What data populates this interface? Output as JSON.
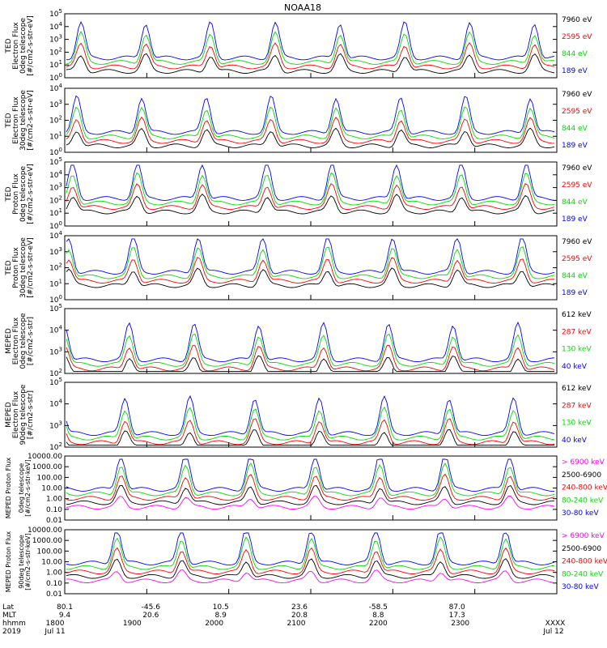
{
  "title": "NOAA18",
  "colors": {
    "blue": "#0000ff",
    "red": "#ff0000",
    "green": "#00dd00",
    "black": "#000000",
    "magenta": "#ff00ff"
  },
  "panels": [
    {
      "instrument": "TED",
      "quantity": "Electron Flux",
      "telescope": "0deg telescope",
      "units": "[#/cm2-s-str-eV]",
      "tick_labels": [
        "10^0",
        "10^1",
        "10^2",
        "10^3",
        "10^4",
        "10^5"
      ],
      "legend": [
        {
          "label": "7960 eV",
          "color": "black"
        },
        {
          "label": "2595 eV",
          "color": "red"
        },
        {
          "label": "844 eV",
          "color": "green"
        },
        {
          "label": "189 eV",
          "color": "blue"
        }
      ]
    },
    {
      "instrument": "TED",
      "quantity": "Electron Flux",
      "telescope": "30deg telescope",
      "units": "[#/cm2-s-str-eV]",
      "tick_labels": [
        "10^0",
        "10^1",
        "10^2",
        "10^3",
        "10^4"
      ],
      "legend": [
        {
          "label": "7960 eV",
          "color": "black"
        },
        {
          "label": "2595 eV",
          "color": "red"
        },
        {
          "label": "844 eV",
          "color": "green"
        },
        {
          "label": "189 eV",
          "color": "blue"
        }
      ]
    },
    {
      "instrument": "TED",
      "quantity": "Proton Flux",
      "telescope": "0deg telescope",
      "units": "[#/cm2-s-str-eV]",
      "tick_labels": [
        "10^0",
        "10^1",
        "10^2",
        "10^3",
        "10^4",
        "10^5"
      ],
      "legend": [
        {
          "label": "7960 eV",
          "color": "black"
        },
        {
          "label": "2595 eV",
          "color": "red"
        },
        {
          "label": "844 eV",
          "color": "green"
        },
        {
          "label": "189 eV",
          "color": "blue"
        }
      ]
    },
    {
      "instrument": "TED",
      "quantity": "Proton Flux",
      "telescope": "30deg telescope",
      "units": "[#/cm2-s-str-eV]",
      "tick_labels": [
        "10^0",
        "10^1",
        "10^2",
        "10^3",
        "10^4"
      ],
      "legend": [
        {
          "label": "7960 eV",
          "color": "black"
        },
        {
          "label": "2595 eV",
          "color": "red"
        },
        {
          "label": "844 eV",
          "color": "green"
        },
        {
          "label": "189 eV",
          "color": "blue"
        }
      ]
    },
    {
      "instrument": "MEPED",
      "quantity": "Electron Flux",
      "telescope": "0deg telescope",
      "units": "[#/cm2-s-str]",
      "tick_labels": [
        "10^2",
        "10^3",
        "10^4",
        "10^5"
      ],
      "legend": [
        {
          "label": "612 keV",
          "color": "black"
        },
        {
          "label": "287 keV",
          "color": "red"
        },
        {
          "label": "130 keV",
          "color": "green"
        },
        {
          "label": "40 keV",
          "color": "blue"
        }
      ]
    },
    {
      "instrument": "MEPED",
      "quantity": "Electron Flux",
      "telescope": "90deg telescope",
      "units": "[#/cm2-s-str]",
      "tick_labels": [
        "10^2",
        "10^3",
        "10^4",
        "10^5"
      ],
      "legend": [
        {
          "label": "612 keV",
          "color": "black"
        },
        {
          "label": "287 keV",
          "color": "red"
        },
        {
          "label": "130 keV",
          "color": "green"
        },
        {
          "label": "40 keV",
          "color": "blue"
        }
      ]
    },
    {
      "instrument": "MEPED",
      "quantity": "Proton Flux",
      "telescope": "0deg telescope",
      "units": "[#/cm2-s-str-keV]",
      "tick_labels": [
        "0.01",
        "0.10",
        "1.00",
        "10.00",
        "100.00",
        "1000.00",
        "10000.00"
      ],
      "legend": [
        {
          "label": "> 6900 keV",
          "color": "magenta"
        },
        {
          "label": "2500-6900",
          "color": "black"
        },
        {
          "label": "240-800 keV",
          "color": "red"
        },
        {
          "label": "80-240 keV",
          "color": "green"
        },
        {
          "label": "30-80 keV",
          "color": "blue"
        }
      ]
    },
    {
      "instrument": "MEPED",
      "quantity": "Proton Flux",
      "telescope": "90deg telescope",
      "units": "[#/cm2-s-str-keV]",
      "tick_labels": [
        "0.01",
        "0.10",
        "1.00",
        "10.00",
        "100.00",
        "1000.00",
        "10000.00"
      ],
      "legend": [
        {
          "label": "> 6900 keV",
          "color": "magenta"
        },
        {
          "label": "2500-6900",
          "color": "black"
        },
        {
          "label": "240-800 keV",
          "color": "red"
        },
        {
          "label": "80-240 keV",
          "color": "green"
        },
        {
          "label": "30-80 keV",
          "color": "blue"
        }
      ]
    }
  ],
  "footer": {
    "row_labels": [
      "Lat",
      "MLT",
      "hhmm",
      "2019"
    ],
    "lat": [
      "80.1",
      "-45.6",
      "10.5",
      "23.6",
      "-58.5",
      "87.0"
    ],
    "mlt": [
      "9.4",
      "20.6",
      "8.9",
      "20.8",
      "8.8",
      "17.3"
    ],
    "hhmm": [
      "1800",
      "1900",
      "2000",
      "2100",
      "2200",
      "2300",
      "XXXX"
    ],
    "dates": [
      "Jul 11",
      "Jul 12"
    ]
  },
  "chart_data": [
    {
      "type": "line",
      "title": "NOAA18",
      "ylabel": "TED Electron Flux 0deg telescope [#/cm2-s-str-eV]",
      "yscale": "log",
      "ylim": [
        1,
        100000
      ],
      "series": [
        {
          "name": "7960 eV",
          "color": "#000000"
        },
        {
          "name": "2595 eV",
          "color": "#ff0000"
        },
        {
          "name": "844 eV",
          "color": "#00dd00"
        },
        {
          "name": "189 eV",
          "color": "#0000ff"
        }
      ]
    },
    {
      "type": "line",
      "ylabel": "TED Electron Flux 30deg telescope [#/cm2-s-str-eV]",
      "yscale": "log",
      "ylim": [
        1,
        10000
      ],
      "series": [
        {
          "name": "7960 eV"
        },
        {
          "name": "2595 eV"
        },
        {
          "name": "844 eV"
        },
        {
          "name": "189 eV"
        }
      ]
    },
    {
      "type": "line",
      "ylabel": "TED Proton Flux 0deg telescope [#/cm2-s-str-eV]",
      "yscale": "log",
      "ylim": [
        1,
        100000
      ],
      "series": [
        {
          "name": "7960 eV"
        },
        {
          "name": "2595 eV"
        },
        {
          "name": "844 eV"
        },
        {
          "name": "189 eV"
        }
      ]
    },
    {
      "type": "line",
      "ylabel": "TED Proton Flux 30deg telescope [#/cm2-s-str-eV]",
      "yscale": "log",
      "ylim": [
        1,
        10000
      ],
      "series": [
        {
          "name": "7960 eV"
        },
        {
          "name": "2595 eV"
        },
        {
          "name": "844 eV"
        },
        {
          "name": "189 eV"
        }
      ]
    },
    {
      "type": "line",
      "ylabel": "MEPED Electron Flux 0deg telescope [#/cm2-s-str]",
      "yscale": "log",
      "ylim": [
        100,
        100000
      ],
      "series": [
        {
          "name": "612 keV"
        },
        {
          "name": "287 keV"
        },
        {
          "name": "130 keV"
        },
        {
          "name": "40 keV"
        }
      ]
    },
    {
      "type": "line",
      "ylabel": "MEPED Electron Flux 90deg telescope [#/cm2-s-str]",
      "yscale": "log",
      "ylim": [
        100,
        100000
      ],
      "series": [
        {
          "name": "612 keV"
        },
        {
          "name": "287 keV"
        },
        {
          "name": "130 keV"
        },
        {
          "name": "40 keV"
        }
      ]
    },
    {
      "type": "line",
      "ylabel": "MEPED Proton Flux 0deg telescope [#/cm2-s-str-keV]",
      "yscale": "log",
      "ylim": [
        0.01,
        10000
      ],
      "series": [
        {
          "name": "> 6900 keV"
        },
        {
          "name": "2500-6900"
        },
        {
          "name": "240-800 keV"
        },
        {
          "name": "80-240 keV"
        },
        {
          "name": "30-80 keV"
        }
      ]
    },
    {
      "type": "line",
      "ylabel": "MEPED Proton Flux 90deg telescope [#/cm2-s-str-keV]",
      "yscale": "log",
      "ylim": [
        0.01,
        10000
      ],
      "series": [
        {
          "name": "> 6900 keV"
        },
        {
          "name": "2500-6900"
        },
        {
          "name": "240-800 keV"
        },
        {
          "name": "80-240 keV"
        },
        {
          "name": "30-80 keV"
        }
      ]
    }
  ]
}
